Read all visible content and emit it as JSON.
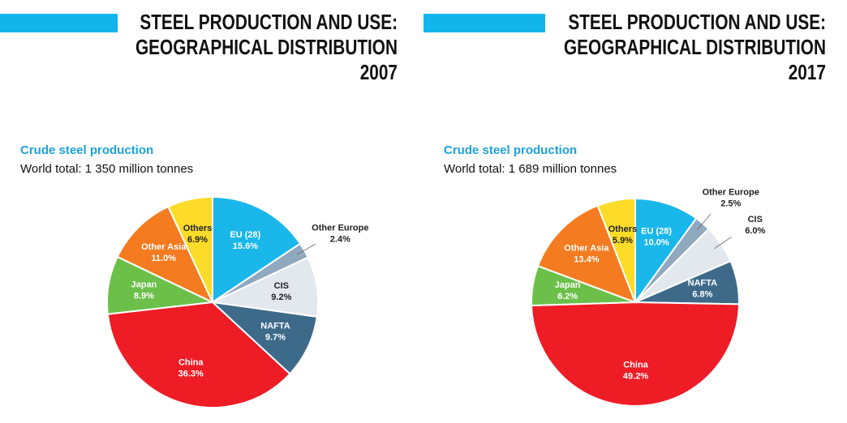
{
  "chart_data": [
    {
      "type": "pie",
      "title": [
        "STEEL PRODUCTION AND USE:",
        "GEOGRAPHICAL DISTRIBUTION",
        "2007"
      ],
      "subtitle": "Crude steel production",
      "note": "World total: 1 350 million tonnes",
      "categories": [
        "EU (28)",
        "Other Europe",
        "CIS",
        "NAFTA",
        "China",
        "Japan",
        "Other Asia",
        "Others"
      ],
      "values": [
        15.6,
        2.4,
        9.2,
        9.7,
        36.3,
        8.9,
        11.0,
        6.9
      ],
      "value_labels": [
        "15.6%",
        "2.4%",
        "9.2%",
        "9.7%",
        "36.3%",
        "8.9%",
        "11.0%",
        "6.9%"
      ],
      "colors": [
        "#1ab7ea",
        "#8fa9bf",
        "#e3e8ee",
        "#3e6a8a",
        "#ee1c25",
        "#6cc04a",
        "#f47b20",
        "#fcdc28"
      ]
    },
    {
      "type": "pie",
      "title": [
        "STEEL PRODUCTION AND USE:",
        "GEOGRAPHICAL DISTRIBUTION",
        "2017"
      ],
      "subtitle": "Crude steel production",
      "note": "World total: 1 689 million tonnes",
      "categories": [
        "EU (28)",
        "Other Europe",
        "CIS",
        "NAFTA",
        "China",
        "Japan",
        "Other Asia",
        "Others"
      ],
      "values": [
        10.0,
        2.5,
        6.0,
        6.8,
        49.2,
        6.2,
        13.4,
        5.9
      ],
      "value_labels": [
        "10.0%",
        "2.5%",
        "6.0%",
        "6.8%",
        "49.2%",
        "6.2%",
        "13.4%",
        "5.9%"
      ],
      "colors": [
        "#1ab7ea",
        "#8fa9bf",
        "#e3e8ee",
        "#3e6a8a",
        "#ee1c25",
        "#6cc04a",
        "#f47b20",
        "#fcdc28"
      ]
    }
  ]
}
